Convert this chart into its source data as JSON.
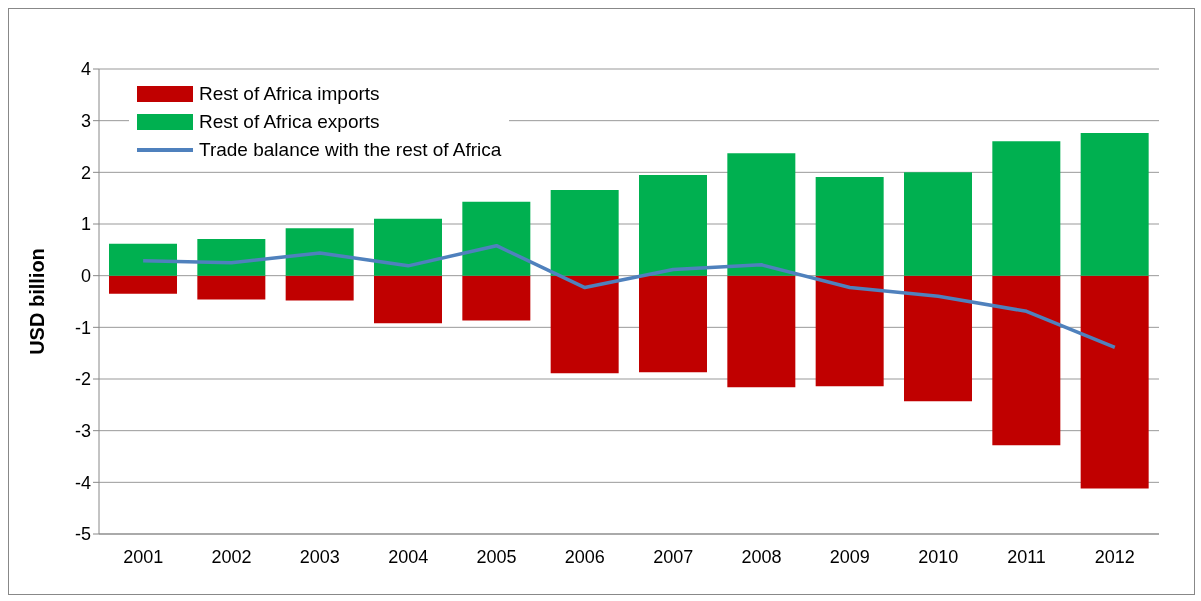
{
  "chart_data": {
    "type": "bar",
    "ylabel": "USD billion",
    "categories": [
      "2001",
      "2002",
      "2003",
      "2004",
      "2005",
      "2006",
      "2007",
      "2008",
      "2009",
      "2010",
      "2011",
      "2012"
    ],
    "series": [
      {
        "name": "Rest of Africa imports",
        "color": "#c00000",
        "values": [
          -0.35,
          -0.46,
          -0.48,
          -0.92,
          -0.87,
          -1.89,
          -1.87,
          -2.16,
          -2.14,
          -2.43,
          -3.28,
          -4.12
        ]
      },
      {
        "name": "Rest of Africa exports",
        "color": "#00b050",
        "values": [
          0.62,
          0.71,
          0.92,
          1.1,
          1.43,
          1.66,
          1.95,
          2.37,
          1.91,
          2.0,
          2.6,
          2.76
        ]
      },
      {
        "name": "Trade balance with the rest of Africa",
        "type": "line",
        "color": "#4f81bd",
        "values": [
          0.29,
          0.25,
          0.44,
          0.19,
          0.58,
          -0.23,
          0.12,
          0.21,
          -0.23,
          -0.4,
          -0.69,
          -1.39
        ]
      }
    ],
    "stacked": true,
    "ylim": [
      -5,
      4
    ],
    "yticks": [
      -5,
      -4,
      -3,
      -2,
      -1,
      0,
      1,
      2,
      3,
      4
    ],
    "grid": "y",
    "legend": "top left",
    "marker": "none",
    "line_style": "solid"
  }
}
